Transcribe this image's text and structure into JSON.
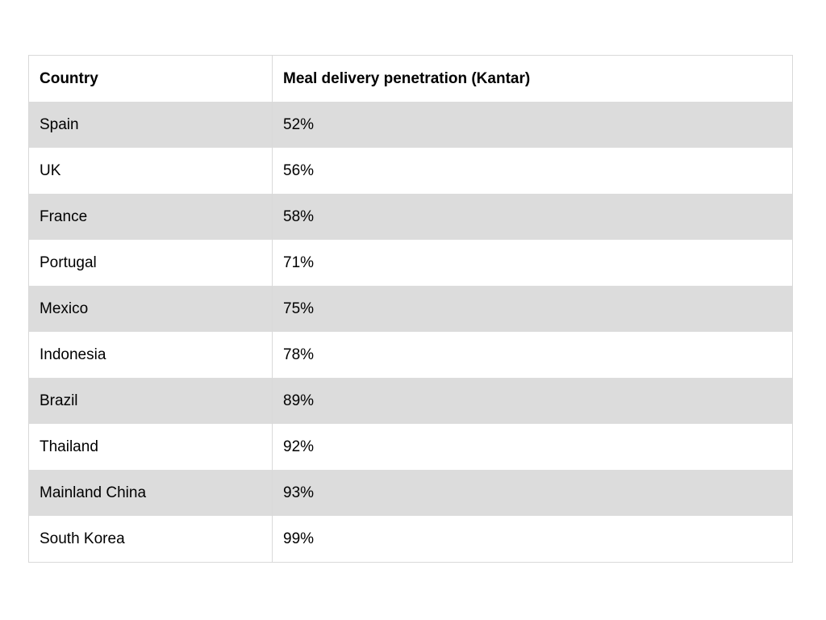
{
  "table": {
    "columns": [
      {
        "key": "country",
        "label": "Country"
      },
      {
        "key": "value",
        "label": "Meal delivery penetration (Kantar)"
      }
    ],
    "rows": [
      {
        "country": "Spain",
        "value": "52%"
      },
      {
        "country": "UK",
        "value": "56%"
      },
      {
        "country": "France",
        "value": "58%"
      },
      {
        "country": "Portugal",
        "value": "71%"
      },
      {
        "country": "Mexico",
        "value": "75%"
      },
      {
        "country": "Indonesia",
        "value": "78%"
      },
      {
        "country": "Brazil",
        "value": "89%"
      },
      {
        "country": "Thailand",
        "value": "92%"
      },
      {
        "country": "Mainland China",
        "value": "93%"
      },
      {
        "country": "South Korea",
        "value": "99%"
      }
    ]
  },
  "colors": {
    "background": "#ffffff",
    "row_alternate": "#dcdcdc",
    "border": "#d9d9d9",
    "text": "#000000"
  }
}
